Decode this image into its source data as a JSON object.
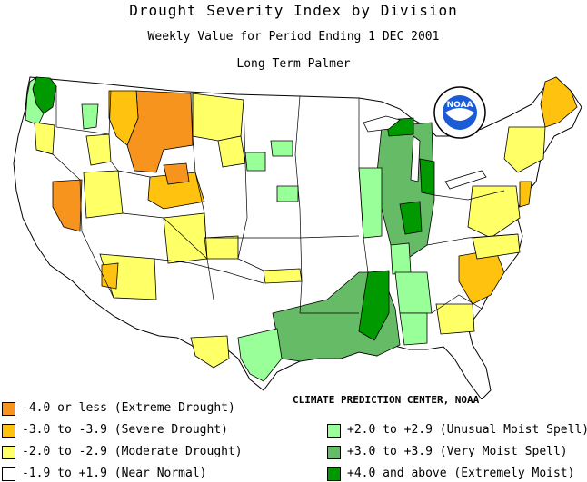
{
  "title": "Drought Severity Index by Division",
  "subtitle": "Weekly Value for Period Ending  1 DEC 2001",
  "index_name": "Long Term Palmer",
  "credit": "CLIMATE PREDICTION CENTER, NOAA",
  "logo_text": "NOAA",
  "colors": {
    "extreme_drought": "#f7941d",
    "severe_drought": "#ffc20e",
    "moderate_drought": "#ffff66",
    "near_normal": "#ffffff",
    "unusual_moist": "#99ff99",
    "very_moist": "#66bb66",
    "extremely_moist": "#009900",
    "border": "#000000",
    "water": "#ffffff"
  },
  "legend": [
    {
      "label": "-4.0 or less (Extreme Drought)",
      "color": "#f7941d"
    },
    {
      "label": "-3.0 to -3.9 (Severe Drought)",
      "color": "#ffc20e"
    },
    {
      "label": "-2.0 to -2.9 (Moderate Drought)",
      "color": "#ffff66"
    },
    {
      "label": "-1.9 to +1.9 (Near Normal)",
      "color": "#ffffff"
    },
    {
      "label": "+2.0 to +2.9 (Unusual Moist Spell)",
      "color": "#99ff99"
    },
    {
      "label": "+3.0 to +3.9 (Very Moist Spell)",
      "color": "#66bb66"
    },
    {
      "label": "+4.0 and above (Extremely Moist)",
      "color": "#009900"
    }
  ]
}
